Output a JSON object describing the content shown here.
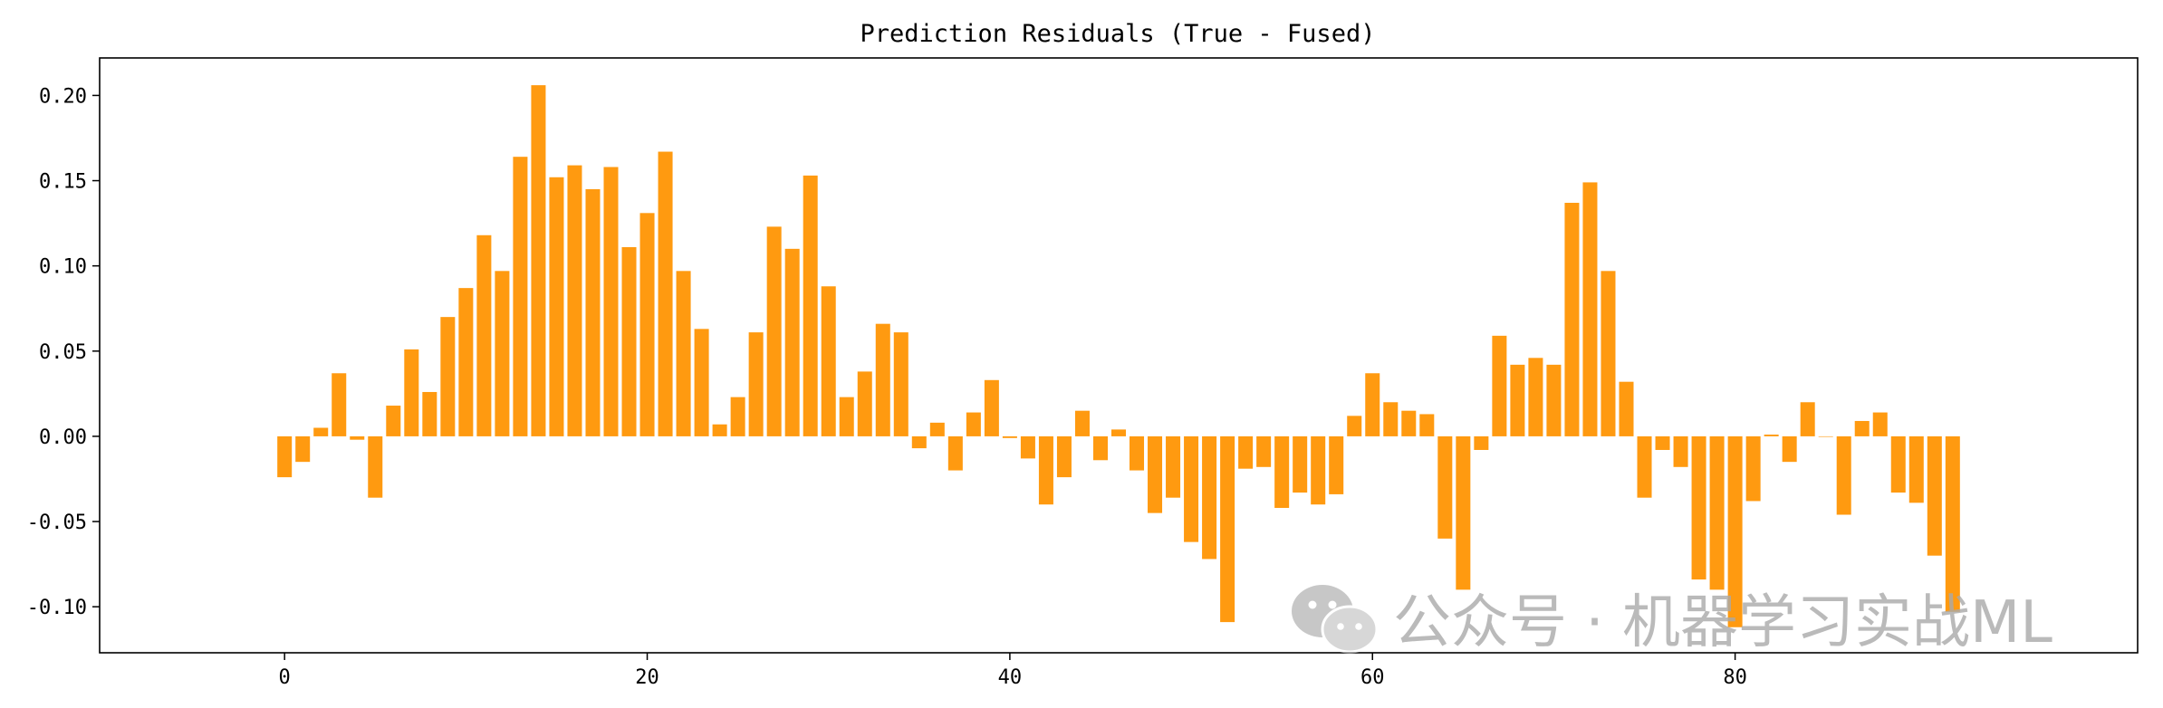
{
  "chart_data": {
    "type": "bar",
    "title": "Prediction Residuals (True - Fused)",
    "xlabel": "",
    "ylabel": "",
    "bar_color": "#ff9a10",
    "xlim": [
      -10.2,
      102.2
    ],
    "ylim": [
      -0.127,
      0.222
    ],
    "x_ticks": [
      0,
      20,
      40,
      60,
      80
    ],
    "x_tick_labels": [
      "0",
      "20",
      "40",
      "60",
      "80"
    ],
    "y_ticks": [
      -0.1,
      -0.05,
      0.0,
      0.05,
      0.1,
      0.15,
      0.2
    ],
    "y_tick_labels": [
      "-0.10",
      "-0.05",
      "0.00",
      "0.05",
      "0.10",
      "0.15",
      "0.20"
    ],
    "grid": false,
    "legend": "none",
    "x": [
      0,
      1,
      2,
      3,
      4,
      5,
      6,
      7,
      8,
      9,
      10,
      11,
      12,
      13,
      14,
      15,
      16,
      17,
      18,
      19,
      20,
      21,
      22,
      23,
      24,
      25,
      26,
      27,
      28,
      29,
      30,
      31,
      32,
      33,
      34,
      35,
      36,
      37,
      38,
      39,
      40,
      41,
      42,
      43,
      44,
      45,
      46,
      47,
      48,
      49,
      50,
      51,
      52,
      53,
      54,
      55,
      56,
      57,
      58,
      59,
      60,
      61,
      62,
      63,
      64,
      65,
      66,
      67,
      68,
      69,
      70,
      71,
      72,
      73,
      74,
      75,
      76,
      77,
      78,
      79,
      80,
      81,
      82,
      83,
      84,
      85,
      86,
      87,
      88,
      89,
      90,
      91,
      92
    ],
    "values": [
      -0.024,
      -0.015,
      0.005,
      0.037,
      -0.002,
      -0.036,
      0.018,
      0.051,
      0.026,
      0.07,
      0.087,
      0.118,
      0.097,
      0.164,
      0.206,
      0.152,
      0.159,
      0.145,
      0.158,
      0.111,
      0.131,
      0.167,
      0.097,
      0.063,
      0.007,
      0.023,
      0.061,
      0.123,
      0.11,
      0.153,
      0.088,
      0.023,
      0.038,
      0.066,
      0.061,
      -0.007,
      0.008,
      -0.02,
      0.014,
      0.033,
      -0.001,
      -0.013,
      -0.04,
      -0.024,
      0.015,
      -0.014,
      0.004,
      -0.02,
      -0.045,
      -0.036,
      -0.062,
      -0.072,
      -0.109,
      -0.019,
      -0.018,
      -0.042,
      -0.033,
      -0.04,
      -0.034,
      0.012,
      0.037,
      0.02,
      0.015,
      0.013,
      -0.06,
      -0.09,
      -0.008,
      0.059,
      0.042,
      0.046,
      0.042,
      0.137,
      0.149,
      0.097,
      0.032,
      -0.036,
      -0.008,
      -0.018,
      -0.084,
      -0.09,
      -0.112,
      -0.038,
      0.001,
      -0.015,
      0.02,
      0.0,
      -0.046,
      0.009,
      0.014,
      -0.033,
      -0.039,
      -0.07,
      -0.103
    ]
  },
  "watermark": {
    "text": "公众号 · 机器学习实战ML",
    "icon": "wechat-icon"
  }
}
